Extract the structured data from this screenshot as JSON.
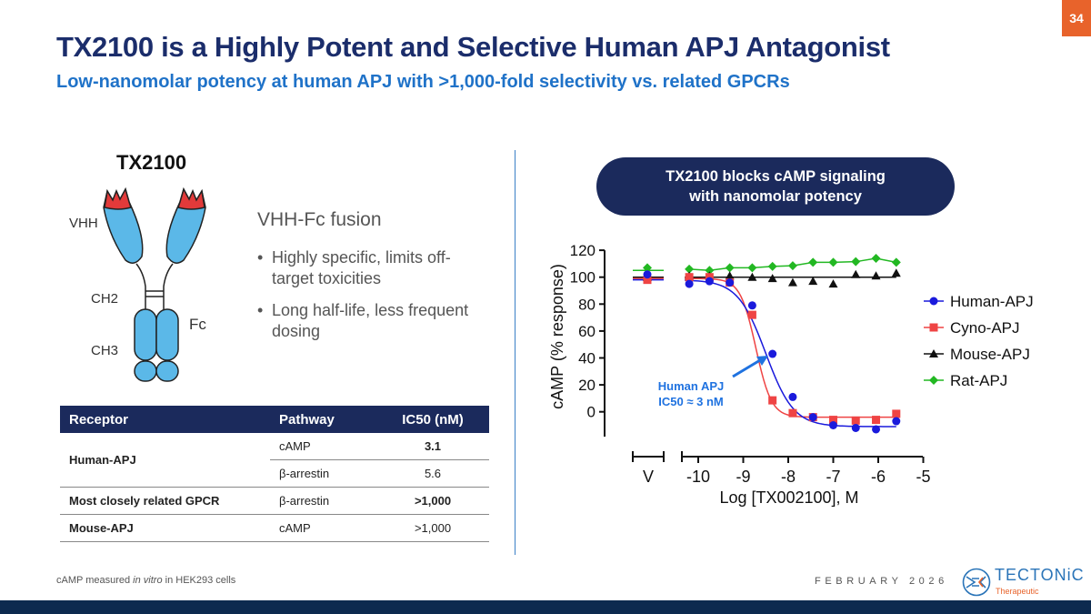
{
  "slide": {
    "title": "TX2100 is a Highly Potent and Selective Human APJ Antagonist",
    "subtitle": "Low-nanomolar potency at human APJ with >1,000-fold selectivity vs. related GPCRs",
    "page_number": "34",
    "footnote": {
      "pre": "cAMP measured ",
      "italic": "in vitro",
      "post": " in HEK293 cells"
    },
    "date": "FEBRUARY 2026",
    "logo": {
      "name": "TECTONiC",
      "tagline": "Therapeutic"
    }
  },
  "molecule": {
    "name": "TX2100",
    "labels": {
      "vhh": "VHH",
      "ch2": "CH2",
      "ch3": "CH3",
      "fc": "Fc"
    },
    "format": "VHH-Fc fusion",
    "bullets": [
      "Highly specific, limits off-target toxicities",
      "Long half-life, less frequent dosing"
    ],
    "colors": {
      "domain": "#5bb8e8",
      "cdr": "#e23a3a"
    }
  },
  "table": {
    "headers": [
      "Receptor",
      "Pathway",
      "IC50 (nM)"
    ],
    "rows": [
      {
        "receptor": "Human-APJ",
        "pathway": "cAMP",
        "ic50": "3.1"
      },
      {
        "receptor": "",
        "pathway": "β-arrestin",
        "ic50": "5.6"
      },
      {
        "receptor": "Most closely related GPCR",
        "pathway": "β-arrestin",
        "ic50": ">1,000"
      },
      {
        "receptor": "Mouse-APJ",
        "pathway": "cAMP",
        "ic50": ">1,000"
      }
    ]
  },
  "callout": {
    "line1": "TX2100 blocks cAMP signaling",
    "line2": "with nanomolar potency"
  },
  "chart_data": {
    "type": "scatter",
    "xlabel": "Log [TX002100], M",
    "ylabel": "cAMP (% response)",
    "xlim": [
      -10.3,
      -5
    ],
    "ylim": [
      -15,
      120
    ],
    "xticks": [
      "-10",
      "-9",
      "-8",
      "-7",
      "-6",
      "-5"
    ],
    "vehicle_label": "V",
    "yticks": [
      "0",
      "20",
      "40",
      "60",
      "80",
      "100",
      "120"
    ],
    "legend_position": "right",
    "annotation": {
      "line1": "Human APJ",
      "line2": "IC50 ≈ 3 nM"
    },
    "x": [
      -10.2,
      -9.75,
      -9.3,
      -8.8,
      -8.35,
      -7.9,
      -7.45,
      -7.0,
      -6.5,
      -6.05,
      -5.6
    ],
    "series": [
      {
        "name": "Human-APJ",
        "color": "#1a1adc",
        "marker": "circle",
        "vehicle": 102,
        "values": [
          95,
          97,
          96,
          79,
          43,
          11,
          -4,
          -10,
          -12,
          -13,
          -7
        ],
        "fit": {
          "top": 98,
          "bottom": -11,
          "logIC50": -8.5,
          "hill": 1.4
        }
      },
      {
        "name": "Cyno-APJ",
        "color": "#ef4444",
        "marker": "square",
        "vehicle": 98,
        "values": [
          100,
          100,
          96,
          72,
          8.5,
          -1,
          -4,
          -6,
          -6.5,
          -6,
          -1.5
        ],
        "fit": {
          "top": 99,
          "bottom": -4,
          "logIC50": -8.72,
          "hill": 2.5
        }
      },
      {
        "name": "Mouse-APJ",
        "color": "#111111",
        "marker": "triangle",
        "vehicle": 100,
        "values": [
          101,
          101,
          101,
          100,
          99,
          96,
          97,
          95,
          102,
          101,
          103
        ],
        "fit": {
          "flat": 100
        }
      },
      {
        "name": "Rat-APJ",
        "color": "#22b822",
        "marker": "diamond",
        "vehicle": 107,
        "values": [
          106,
          105,
          107,
          107,
          108,
          108.5,
          111,
          111,
          111.5,
          114,
          111
        ],
        "fit": {
          "connect": true
        }
      }
    ]
  }
}
